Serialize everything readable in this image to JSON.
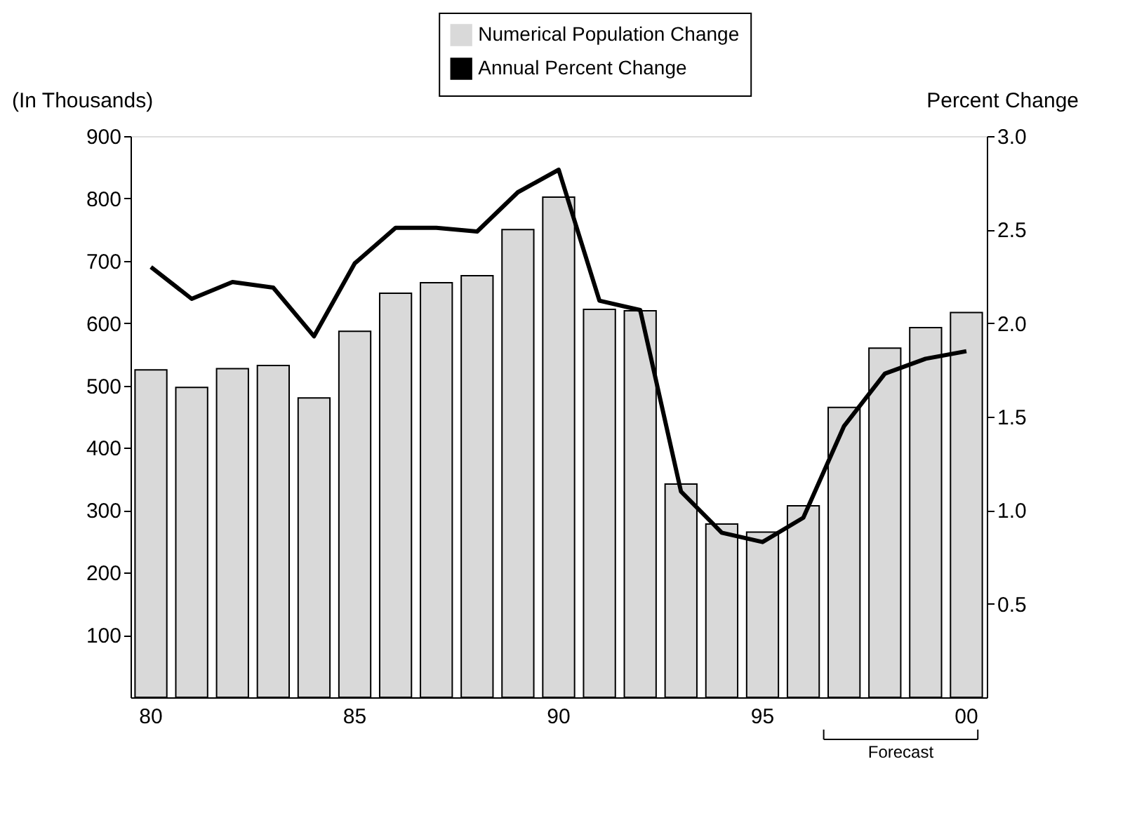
{
  "chart_data": {
    "type": "bar",
    "ylabel": "(In Thousands)",
    "y2label": "Percent Change",
    "categories": [
      "80",
      null,
      null,
      null,
      null,
      "85",
      null,
      null,
      null,
      null,
      "90",
      null,
      null,
      null,
      null,
      "95",
      null,
      null,
      null,
      null,
      "00"
    ],
    "series": [
      {
        "name": "Numerical Population Change",
        "color": "#d9d9d9",
        "values": [
          525,
          497,
          527,
          532,
          480,
          587,
          648,
          665,
          676,
          750,
          802,
          622,
          620,
          342,
          278,
          265,
          307,
          465,
          560,
          593,
          617
        ]
      },
      {
        "name": "Annual Percent Change",
        "type": "line",
        "axis": "y2",
        "color": "#000000",
        "values": [
          2.3,
          2.13,
          2.22,
          2.19,
          1.93,
          2.32,
          2.51,
          2.51,
          2.49,
          2.7,
          2.82,
          2.12,
          2.07,
          1.1,
          0.88,
          0.83,
          0.96,
          1.45,
          1.73,
          1.81,
          1.85
        ]
      }
    ],
    "ylim": [
      0,
      900
    ],
    "yticks": [
      100,
      200,
      300,
      400,
      500,
      600,
      700,
      800,
      900
    ],
    "y2lim": [
      0,
      3.0
    ],
    "y2ticks": [
      0.5,
      {
        "value": 1,
        "label": "1.0"
      },
      1.5,
      {
        "value": 2,
        "label": "2.0"
      },
      2.5,
      {
        "value": 3,
        "label": "3.0"
      }
    ],
    "annotations": [
      "Forecast"
    ],
    "legend": "top",
    "grid": false,
    "marker": "none",
    "line_style": "solid"
  }
}
